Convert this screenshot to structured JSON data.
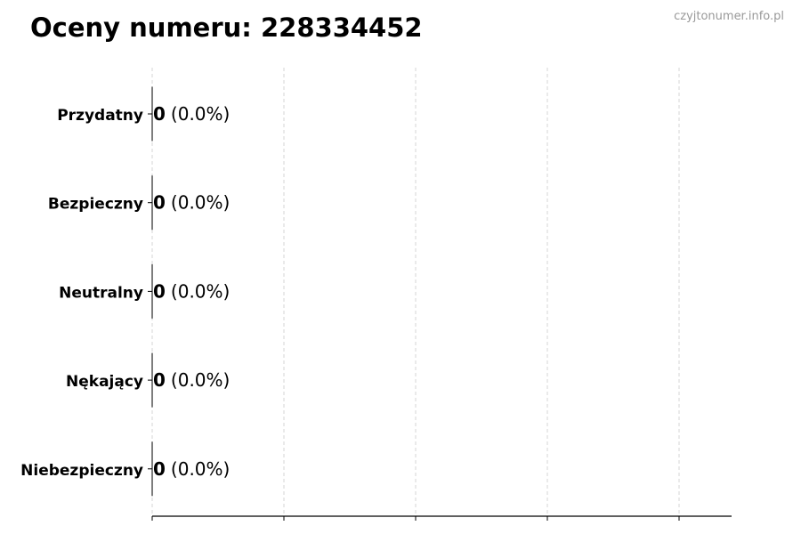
{
  "chart_data": {
    "type": "bar",
    "orientation": "horizontal",
    "title": "Oceny numeru: 228334452",
    "watermark": "czyjtonumer.info.pl",
    "categories": [
      "Przydatny",
      "Bezpieczny",
      "Neutralny",
      "Nękający",
      "Niebezpieczny"
    ],
    "values": [
      0,
      0,
      0,
      0,
      0
    ],
    "data_labels": [
      {
        "count": "0",
        "percent": "(0.0%)"
      },
      {
        "count": "0",
        "percent": "(0.0%)"
      },
      {
        "count": "0",
        "percent": "(0.0%)"
      },
      {
        "count": "0",
        "percent": "(0.0%)"
      },
      {
        "count": "0",
        "percent": "(0.0%)"
      }
    ],
    "xlabel": "",
    "ylabel": "",
    "grid": "vertical dashed",
    "bar_edge_color": "#000000",
    "grid_color": "#cccccc",
    "watermark_color": "#999999"
  }
}
